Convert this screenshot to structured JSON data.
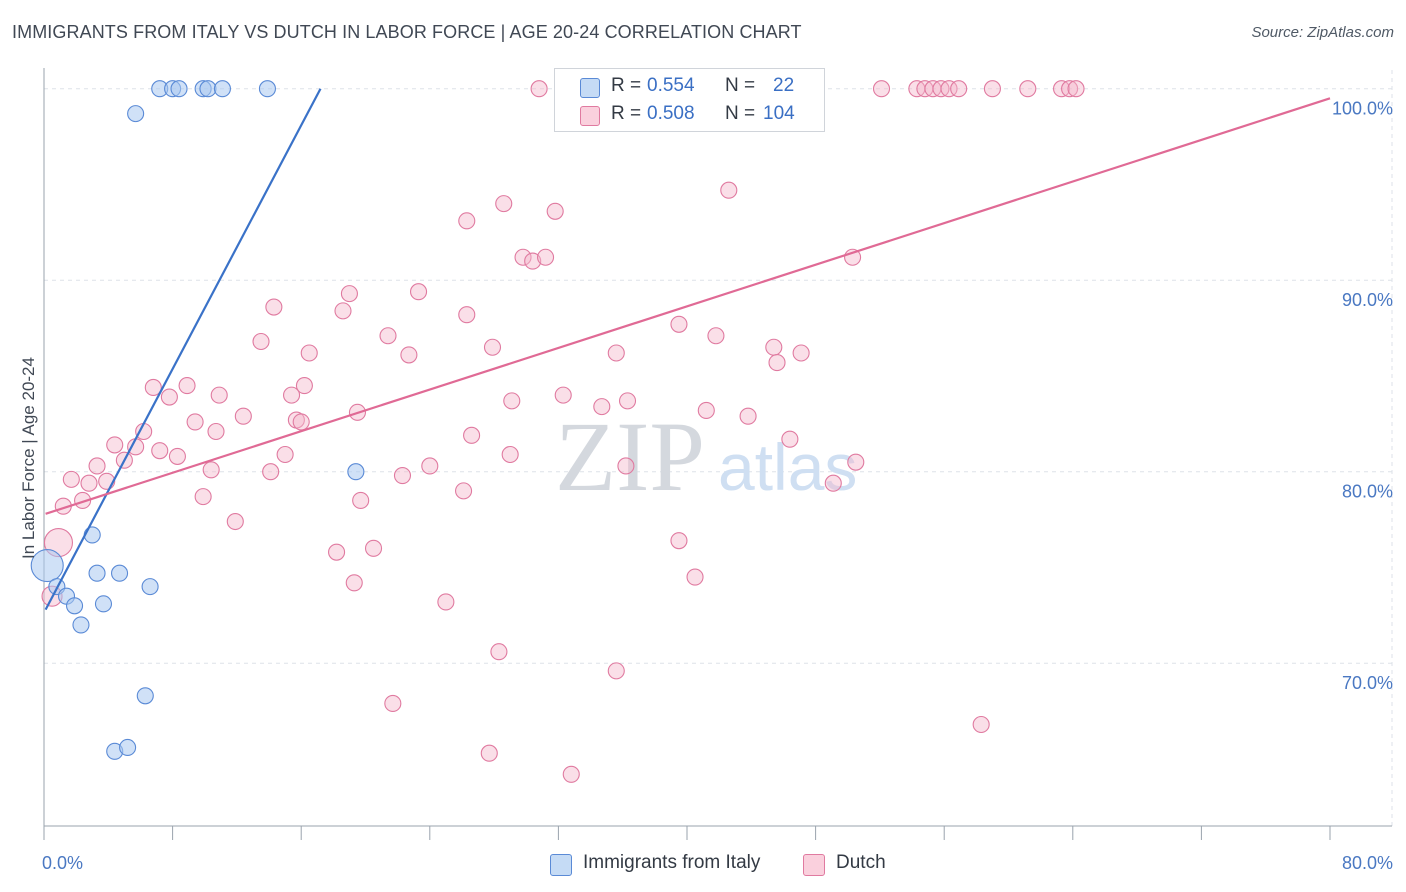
{
  "title": "IMMIGRANTS FROM ITALY VS DUTCH IN LABOR FORCE | AGE 20-24 CORRELATION CHART",
  "source": "Source: ZipAtlas.com",
  "watermark": {
    "zip": "ZIP",
    "atlas": "atlas"
  },
  "legend": {
    "rows": [
      {
        "r_label": "R =",
        "r_value": "0.554",
        "n_label": "N =",
        "n_value": "22"
      },
      {
        "r_label": "R =",
        "r_value": "0.508",
        "n_label": "N =",
        "n_value": "104"
      }
    ]
  },
  "colors": {
    "italy_fill": "#a9c8f0",
    "italy_stroke": "#5a8ad6",
    "italy_line": "#3a72c8",
    "dutch_fill": "#f5b8cc",
    "dutch_stroke": "#e07aa0",
    "dutch_line": "#e06a95",
    "grid": "#dde2e8",
    "axis_text": "#4a78c2"
  },
  "chart_data": {
    "type": "scatter",
    "title": "IMMIGRANTS FROM ITALY VS DUTCH IN LABOR FORCE | AGE 20-24 CORRELATION CHART",
    "xlabel": "",
    "ylabel": "In Labor Force | Age 20-24",
    "xlim": [
      0,
      80
    ],
    "ylim": [
      61.5,
      101.5
    ],
    "x_tick_labels": [
      {
        "value": 0,
        "label": "0.0%"
      },
      {
        "value": 80,
        "label": "80.0%"
      }
    ],
    "x_minor_ticks": [
      0,
      8,
      16,
      24,
      32,
      40,
      48,
      56,
      64,
      72,
      80
    ],
    "y_ticks": [
      {
        "value": 100,
        "label": "100.0%"
      },
      {
        "value": 90,
        "label": "90.0%"
      },
      {
        "value": 80,
        "label": "80.0%"
      },
      {
        "value": 70,
        "label": "70.0%"
      }
    ],
    "legend_position": "top-center",
    "series": [
      {
        "name": "Immigrants from Italy",
        "R": 0.554,
        "N": 22,
        "trend": {
          "x0": 0.1,
          "y0": 72.8,
          "x1": 17.2,
          "y1": 100.0
        },
        "points": [
          {
            "x": 7.2,
            "y": 100.0
          },
          {
            "x": 8.0,
            "y": 100.0
          },
          {
            "x": 8.4,
            "y": 100.0
          },
          {
            "x": 9.9,
            "y": 100.0
          },
          {
            "x": 10.2,
            "y": 100.0
          },
          {
            "x": 11.1,
            "y": 100.0
          },
          {
            "x": 13.9,
            "y": 100.0
          },
          {
            "x": 5.7,
            "y": 98.7
          },
          {
            "x": 19.4,
            "y": 80.0
          },
          {
            "x": 3.0,
            "y": 76.7
          },
          {
            "x": 3.3,
            "y": 74.7
          },
          {
            "x": 4.7,
            "y": 74.7
          },
          {
            "x": 6.6,
            "y": 74.0
          },
          {
            "x": 0.2,
            "y": 75.1,
            "r": 16
          },
          {
            "x": 0.8,
            "y": 74.0
          },
          {
            "x": 1.4,
            "y": 73.5
          },
          {
            "x": 1.9,
            "y": 73.0
          },
          {
            "x": 3.7,
            "y": 73.1
          },
          {
            "x": 2.3,
            "y": 72.0
          },
          {
            "x": 6.3,
            "y": 68.3
          },
          {
            "x": 4.4,
            "y": 65.4
          },
          {
            "x": 5.2,
            "y": 65.6
          }
        ]
      },
      {
        "name": "Dutch",
        "R": 0.508,
        "N": 104,
        "trend": {
          "x0": 0.1,
          "y0": 77.8,
          "x1": 80.0,
          "y1": 99.5
        },
        "points": [
          {
            "x": 30.8,
            "y": 100.0
          },
          {
            "x": 33.5,
            "y": 100.0
          },
          {
            "x": 38.1,
            "y": 100.0
          },
          {
            "x": 40.7,
            "y": 100.0
          },
          {
            "x": 47.9,
            "y": 100.0
          },
          {
            "x": 52.1,
            "y": 100.0
          },
          {
            "x": 54.3,
            "y": 100.0
          },
          {
            "x": 54.8,
            "y": 100.0
          },
          {
            "x": 55.3,
            "y": 100.0
          },
          {
            "x": 55.8,
            "y": 100.0
          },
          {
            "x": 56.3,
            "y": 100.0
          },
          {
            "x": 56.9,
            "y": 100.0
          },
          {
            "x": 59.0,
            "y": 100.0
          },
          {
            "x": 61.2,
            "y": 100.0
          },
          {
            "x": 63.3,
            "y": 100.0
          },
          {
            "x": 63.8,
            "y": 100.0
          },
          {
            "x": 64.2,
            "y": 100.0
          },
          {
            "x": 42.6,
            "y": 94.7
          },
          {
            "x": 28.6,
            "y": 94.0
          },
          {
            "x": 26.3,
            "y": 93.1
          },
          {
            "x": 31.8,
            "y": 93.6
          },
          {
            "x": 29.8,
            "y": 91.2
          },
          {
            "x": 30.4,
            "y": 91.0
          },
          {
            "x": 31.2,
            "y": 91.2
          },
          {
            "x": 50.3,
            "y": 91.2
          },
          {
            "x": 14.3,
            "y": 88.6
          },
          {
            "x": 18.6,
            "y": 88.4
          },
          {
            "x": 19.0,
            "y": 89.3
          },
          {
            "x": 23.3,
            "y": 89.4
          },
          {
            "x": 26.3,
            "y": 88.2
          },
          {
            "x": 39.5,
            "y": 87.7
          },
          {
            "x": 13.5,
            "y": 86.8
          },
          {
            "x": 16.5,
            "y": 86.2
          },
          {
            "x": 21.4,
            "y": 87.1
          },
          {
            "x": 22.7,
            "y": 86.1
          },
          {
            "x": 27.9,
            "y": 86.5
          },
          {
            "x": 35.6,
            "y": 86.2
          },
          {
            "x": 41.8,
            "y": 87.1
          },
          {
            "x": 45.4,
            "y": 86.5
          },
          {
            "x": 45.6,
            "y": 85.7
          },
          {
            "x": 47.1,
            "y": 86.2
          },
          {
            "x": 6.8,
            "y": 84.4
          },
          {
            "x": 7.8,
            "y": 83.9
          },
          {
            "x": 8.9,
            "y": 84.5
          },
          {
            "x": 10.9,
            "y": 84.0
          },
          {
            "x": 9.4,
            "y": 82.6
          },
          {
            "x": 10.7,
            "y": 82.1
          },
          {
            "x": 12.4,
            "y": 82.9
          },
          {
            "x": 15.4,
            "y": 84.0
          },
          {
            "x": 16.2,
            "y": 84.5
          },
          {
            "x": 15.7,
            "y": 82.7
          },
          {
            "x": 16.0,
            "y": 82.6
          },
          {
            "x": 19.5,
            "y": 83.1
          },
          {
            "x": 29.1,
            "y": 83.7
          },
          {
            "x": 32.3,
            "y": 84.0
          },
          {
            "x": 34.7,
            "y": 83.4
          },
          {
            "x": 36.3,
            "y": 83.7
          },
          {
            "x": 41.2,
            "y": 83.2
          },
          {
            "x": 43.8,
            "y": 82.9
          },
          {
            "x": 6.2,
            "y": 82.1
          },
          {
            "x": 26.6,
            "y": 81.9
          },
          {
            "x": 46.4,
            "y": 81.7
          },
          {
            "x": 4.4,
            "y": 81.4
          },
          {
            "x": 5.7,
            "y": 81.3
          },
          {
            "x": 7.2,
            "y": 81.1
          },
          {
            "x": 8.3,
            "y": 80.8
          },
          {
            "x": 15.0,
            "y": 80.9
          },
          {
            "x": 29.0,
            "y": 80.9
          },
          {
            "x": 5.0,
            "y": 80.6
          },
          {
            "x": 3.3,
            "y": 80.3
          },
          {
            "x": 10.4,
            "y": 80.1
          },
          {
            "x": 14.1,
            "y": 80.0
          },
          {
            "x": 24.0,
            "y": 80.3
          },
          {
            "x": 36.2,
            "y": 80.3
          },
          {
            "x": 50.5,
            "y": 80.5
          },
          {
            "x": 1.7,
            "y": 79.6
          },
          {
            "x": 2.8,
            "y": 79.4
          },
          {
            "x": 3.9,
            "y": 79.5
          },
          {
            "x": 22.3,
            "y": 79.8
          },
          {
            "x": 49.1,
            "y": 79.4
          },
          {
            "x": 2.4,
            "y": 78.5
          },
          {
            "x": 1.2,
            "y": 78.2
          },
          {
            "x": 9.9,
            "y": 78.7
          },
          {
            "x": 19.7,
            "y": 78.5
          },
          {
            "x": 26.1,
            "y": 79.0
          },
          {
            "x": 11.9,
            "y": 77.4
          },
          {
            "x": 0.9,
            "y": 76.3,
            "r": 14
          },
          {
            "x": 0.5,
            "y": 73.5,
            "r": 10
          },
          {
            "x": 39.5,
            "y": 76.4
          },
          {
            "x": 18.2,
            "y": 75.8
          },
          {
            "x": 20.5,
            "y": 76.0
          },
          {
            "x": 19.3,
            "y": 74.2
          },
          {
            "x": 40.5,
            "y": 74.5
          },
          {
            "x": 25.0,
            "y": 73.2
          },
          {
            "x": 28.3,
            "y": 70.6
          },
          {
            "x": 35.6,
            "y": 69.6
          },
          {
            "x": 21.7,
            "y": 67.9
          },
          {
            "x": 58.3,
            "y": 66.8
          },
          {
            "x": 27.7,
            "y": 65.3
          },
          {
            "x": 32.8,
            "y": 64.2
          }
        ]
      }
    ]
  },
  "bottom_legend": [
    {
      "label": "Immigrants from Italy"
    },
    {
      "label": "Dutch"
    }
  ]
}
